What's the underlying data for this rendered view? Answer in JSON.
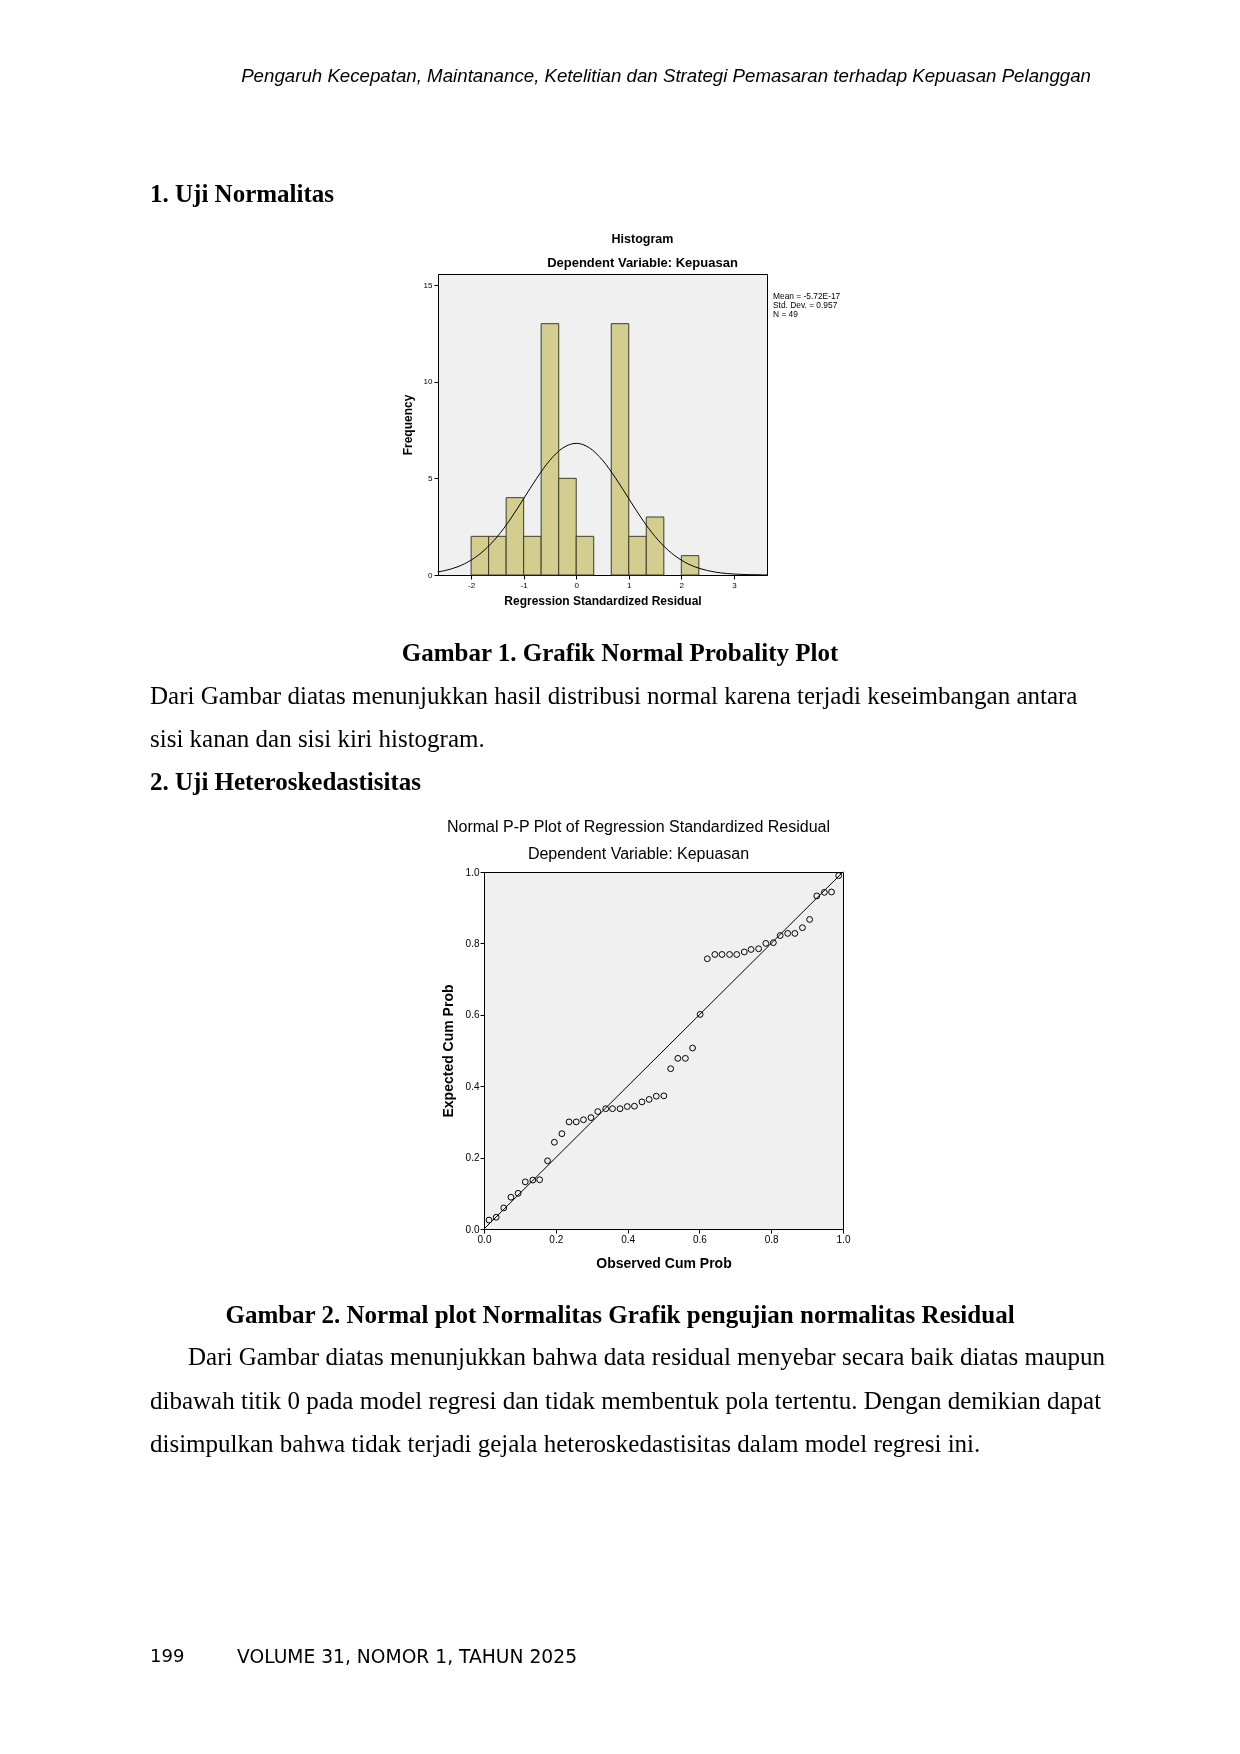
{
  "chart_data": [
    {
      "type": "histogram",
      "title": "Histogram",
      "subtitle": "Dependent Variable: Kepuasan",
      "xlabel": "Regression Standardized Residual",
      "ylabel": "Frequency",
      "xlim": [
        -2.63,
        3.63
      ],
      "ylim": [
        0,
        15.57
      ],
      "xticks": [
        -2,
        -1,
        0,
        1,
        2,
        3
      ],
      "yticks": [
        0,
        5,
        10,
        15
      ],
      "bins": [
        -2,
        -1.667,
        -1.333,
        -1,
        -0.667,
        -0.333,
        0,
        0.333,
        0.667,
        1,
        1.333,
        1.667,
        2,
        2.333
      ],
      "values": [
        2,
        2,
        4,
        2,
        13,
        5,
        2,
        0,
        13,
        2,
        3,
        0,
        1
      ],
      "color": "#d3ce8f",
      "series": [
        {
          "type": "line",
          "color": "#000000",
          "x": [
            -2.63,
            -2.5,
            -2.25,
            -2,
            -1.75,
            -1.5,
            -1.25,
            -1,
            -0.75,
            -0.5,
            -0.25,
            0,
            0.25,
            0.5,
            0.75,
            1,
            1.25,
            1.5,
            1.75,
            2,
            2.25,
            2.5,
            2.75,
            3,
            3.25,
            3.5,
            3.63
          ],
          "values": [
            0.16,
            0.23,
            0.43,
            0.77,
            1.28,
            1.99,
            2.9,
            3.95,
            5.01,
            5.94,
            6.58,
            6.81,
            6.58,
            5.94,
            5.01,
            3.95,
            2.9,
            1.99,
            1.28,
            0.77,
            0.43,
            0.23,
            0.11,
            0.05,
            0.02,
            0.01,
            0.0
          ]
        }
      ],
      "annotations": [
        "Pengaruh Kecepatan, Maintanance, Ketelitian dan Strategi Pemasaran terhadap Kepuasan Pelanggan",
        "1. Uji Normalitas",
        "Mean = -5.72E-17",
        "Std. Dev. = 0.957",
        "N = 49",
        "Gambar 1. Grafik Normal Probality Plot",
        "Dari Gambar diatas menunjukkan hasil distribusi normal karena terjadi keseimbangan antara sisi kanan dan sisi kiri histogram."
      ]
    },
    {
      "type": "scatter",
      "title": "Normal P-P Plot of Regression Standardized Residual",
      "subtitle": "Dependent Variable: Kepuasan",
      "xlabel": "Observed Cum Prob",
      "ylabel": "Expected Cum Prob",
      "xlim": [
        0,
        1
      ],
      "ylim": [
        0,
        1
      ],
      "xticks": [
        {
          "value": 0,
          "label": "0.0"
        },
        0.2,
        0.4,
        0.6,
        0.8,
        {
          "value": 1,
          "label": "1.0"
        }
      ],
      "yticks": [
        {
          "value": 0,
          "label": "0.0"
        },
        0.2,
        0.4,
        0.6,
        0.8,
        {
          "value": 1,
          "label": "1.0"
        }
      ],
      "series": [
        {
          "color": "#000000",
          "marker": "circle",
          "x": [
            0.014,
            0.034,
            0.055,
            0.075,
            0.095,
            0.115,
            0.136,
            0.155,
            0.177,
            0.196,
            0.217,
            0.237,
            0.257,
            0.277,
            0.298,
            0.317,
            0.339,
            0.358,
            0.379,
            0.399,
            0.419,
            0.44,
            0.46,
            0.48,
            0.501,
            0.52,
            0.54,
            0.561,
            0.581,
            0.602,
            0.622,
            0.643,
            0.663,
            0.684,
            0.704,
            0.725,
            0.744,
            0.765,
            0.785,
            0.806,
            0.825,
            0.846,
            0.866,
            0.887,
            0.907,
            0.927,
            0.948,
            0.968,
            0.988
          ],
          "values": [
            0.025,
            0.033,
            0.059,
            0.089,
            0.1,
            0.132,
            0.137,
            0.138,
            0.191,
            0.243,
            0.267,
            0.3,
            0.3,
            0.306,
            0.312,
            0.329,
            0.337,
            0.337,
            0.337,
            0.343,
            0.344,
            0.356,
            0.363,
            0.372,
            0.373,
            0.449,
            0.478,
            0.478,
            0.507,
            0.601,
            0.757,
            0.769,
            0.769,
            0.769,
            0.769,
            0.776,
            0.783,
            0.785,
            0.8,
            0.802,
            0.822,
            0.828,
            0.828,
            0.844,
            0.867,
            0.933,
            0.943,
            0.944,
            0.99
          ]
        },
        {
          "type": "line",
          "color": "#000000",
          "x": [
            0,
            1
          ],
          "values": [
            0,
            1
          ]
        }
      ],
      "annotations": [
        "2. Uji Heteroskedastisitas",
        "Gambar 2. Normal plot Normalitas Grafik pengujian normalitas Residual",
        "Dari Gambar diatas menunjukkan bahwa data residual menyebar secara baik diatas maupun dibawah titik 0 pada model regresi dan tidak membentuk pola tertentu. Dengan demikian dapat disimpulkan bahwa tidak terjadi gejala heteroskedastisitas dalam model regresi ini.",
        "199",
        "VOLUME 31, NOMOR 1, TAHUN 2025"
      ]
    }
  ]
}
